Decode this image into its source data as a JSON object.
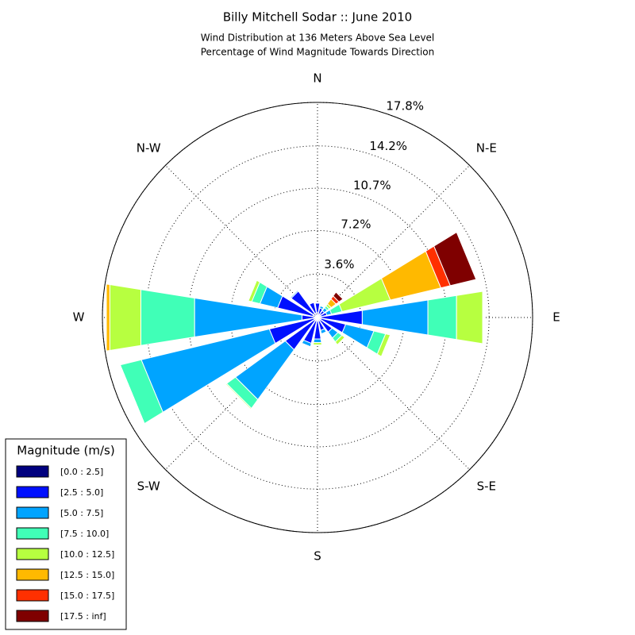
{
  "chart_data": {
    "type": "windrose",
    "title": "Billy Mitchell Sodar :: June 2010",
    "subtitle": [
      "Wind Distribution at 136 Meters Above Sea Level",
      "Percentage of Wind Magnitude Towards Direction"
    ],
    "categories": [
      "N",
      null,
      "N-E",
      null,
      "E",
      null,
      "S-E",
      null,
      "S",
      null,
      "S-W",
      null,
      "W",
      null,
      "N-W",
      null
    ],
    "rlim": [
      0,
      17.8
    ],
    "rticks": [
      {
        "value": 3.6,
        "label": "3.6%"
      },
      {
        "value": 7.2,
        "label": "7.2%"
      },
      {
        "value": 10.7,
        "label": "10.7%"
      },
      {
        "value": 14.2,
        "label": "14.2%"
      },
      {
        "value": 17.8,
        "label": "17.8%"
      }
    ],
    "grid": true,
    "legend_title": "Magnitude (m/s)",
    "legend_position": "lower left",
    "series": [
      {
        "name": "[0.0 : 2.5]",
        "color": "#00007f",
        "values": [
          0.4,
          0.3,
          0.3,
          0.3,
          0.3,
          0.3,
          0.3,
          0.3,
          0.3,
          0.3,
          0.3,
          0.3,
          0.3,
          0.4,
          0.4,
          0.4
        ]
      },
      {
        "name": "[2.5 : 5.0]",
        "color": "#0010ff",
        "values": [
          0.8,
          0.5,
          0.4,
          0.5,
          3.45,
          2.1,
          1.2,
          0.8,
          1.5,
          1.9,
          3.0,
          3.8,
          1.0,
          3.0,
          2.3,
          0.9
        ]
      },
      {
        "name": "[5.0 : 7.5]",
        "color": "#00a4ff",
        "values": [
          0,
          0.2,
          0.3,
          0.4,
          5.5,
          2.4,
          0.6,
          0.3,
          0.3,
          0.3,
          5.1,
          10.9,
          9.0,
          1.5,
          0.1,
          0
        ]
      },
      {
        "name": "[7.5 : 10.0]",
        "color": "#40ffb7",
        "values": [
          0,
          0,
          0.2,
          0.9,
          2.4,
          1.0,
          0.4,
          0,
          0,
          0,
          0.9,
          1.8,
          4.5,
          0.7,
          0,
          0
        ]
      },
      {
        "name": "[10.0 : 12.5]",
        "color": "#b7ff40",
        "values": [
          0,
          0,
          0.2,
          4.1,
          2.2,
          0.4,
          0.3,
          0,
          0.2,
          0,
          0.1,
          0,
          2.6,
          0.3,
          0,
          0
        ]
      },
      {
        "name": "[12.5 : 15.0]",
        "color": "#ffb900",
        "values": [
          0,
          0,
          0.5,
          4.3,
          0,
          0,
          0,
          0,
          0,
          0,
          0,
          0,
          0.3,
          0,
          0,
          0
        ]
      },
      {
        "name": "[15.0 : 17.5]",
        "color": "#ff3000",
        "values": [
          0,
          0,
          0.3,
          0.8,
          0,
          0,
          0,
          0,
          0,
          0,
          0,
          0,
          0,
          0,
          0,
          0
        ]
      },
      {
        "name": "[17.5 : inf]",
        "color": "#7f0000",
        "values": [
          0,
          0,
          0.4,
          2.2,
          0,
          0,
          0,
          0,
          0,
          0,
          0,
          0,
          0,
          0,
          0,
          0
        ]
      }
    ]
  }
}
